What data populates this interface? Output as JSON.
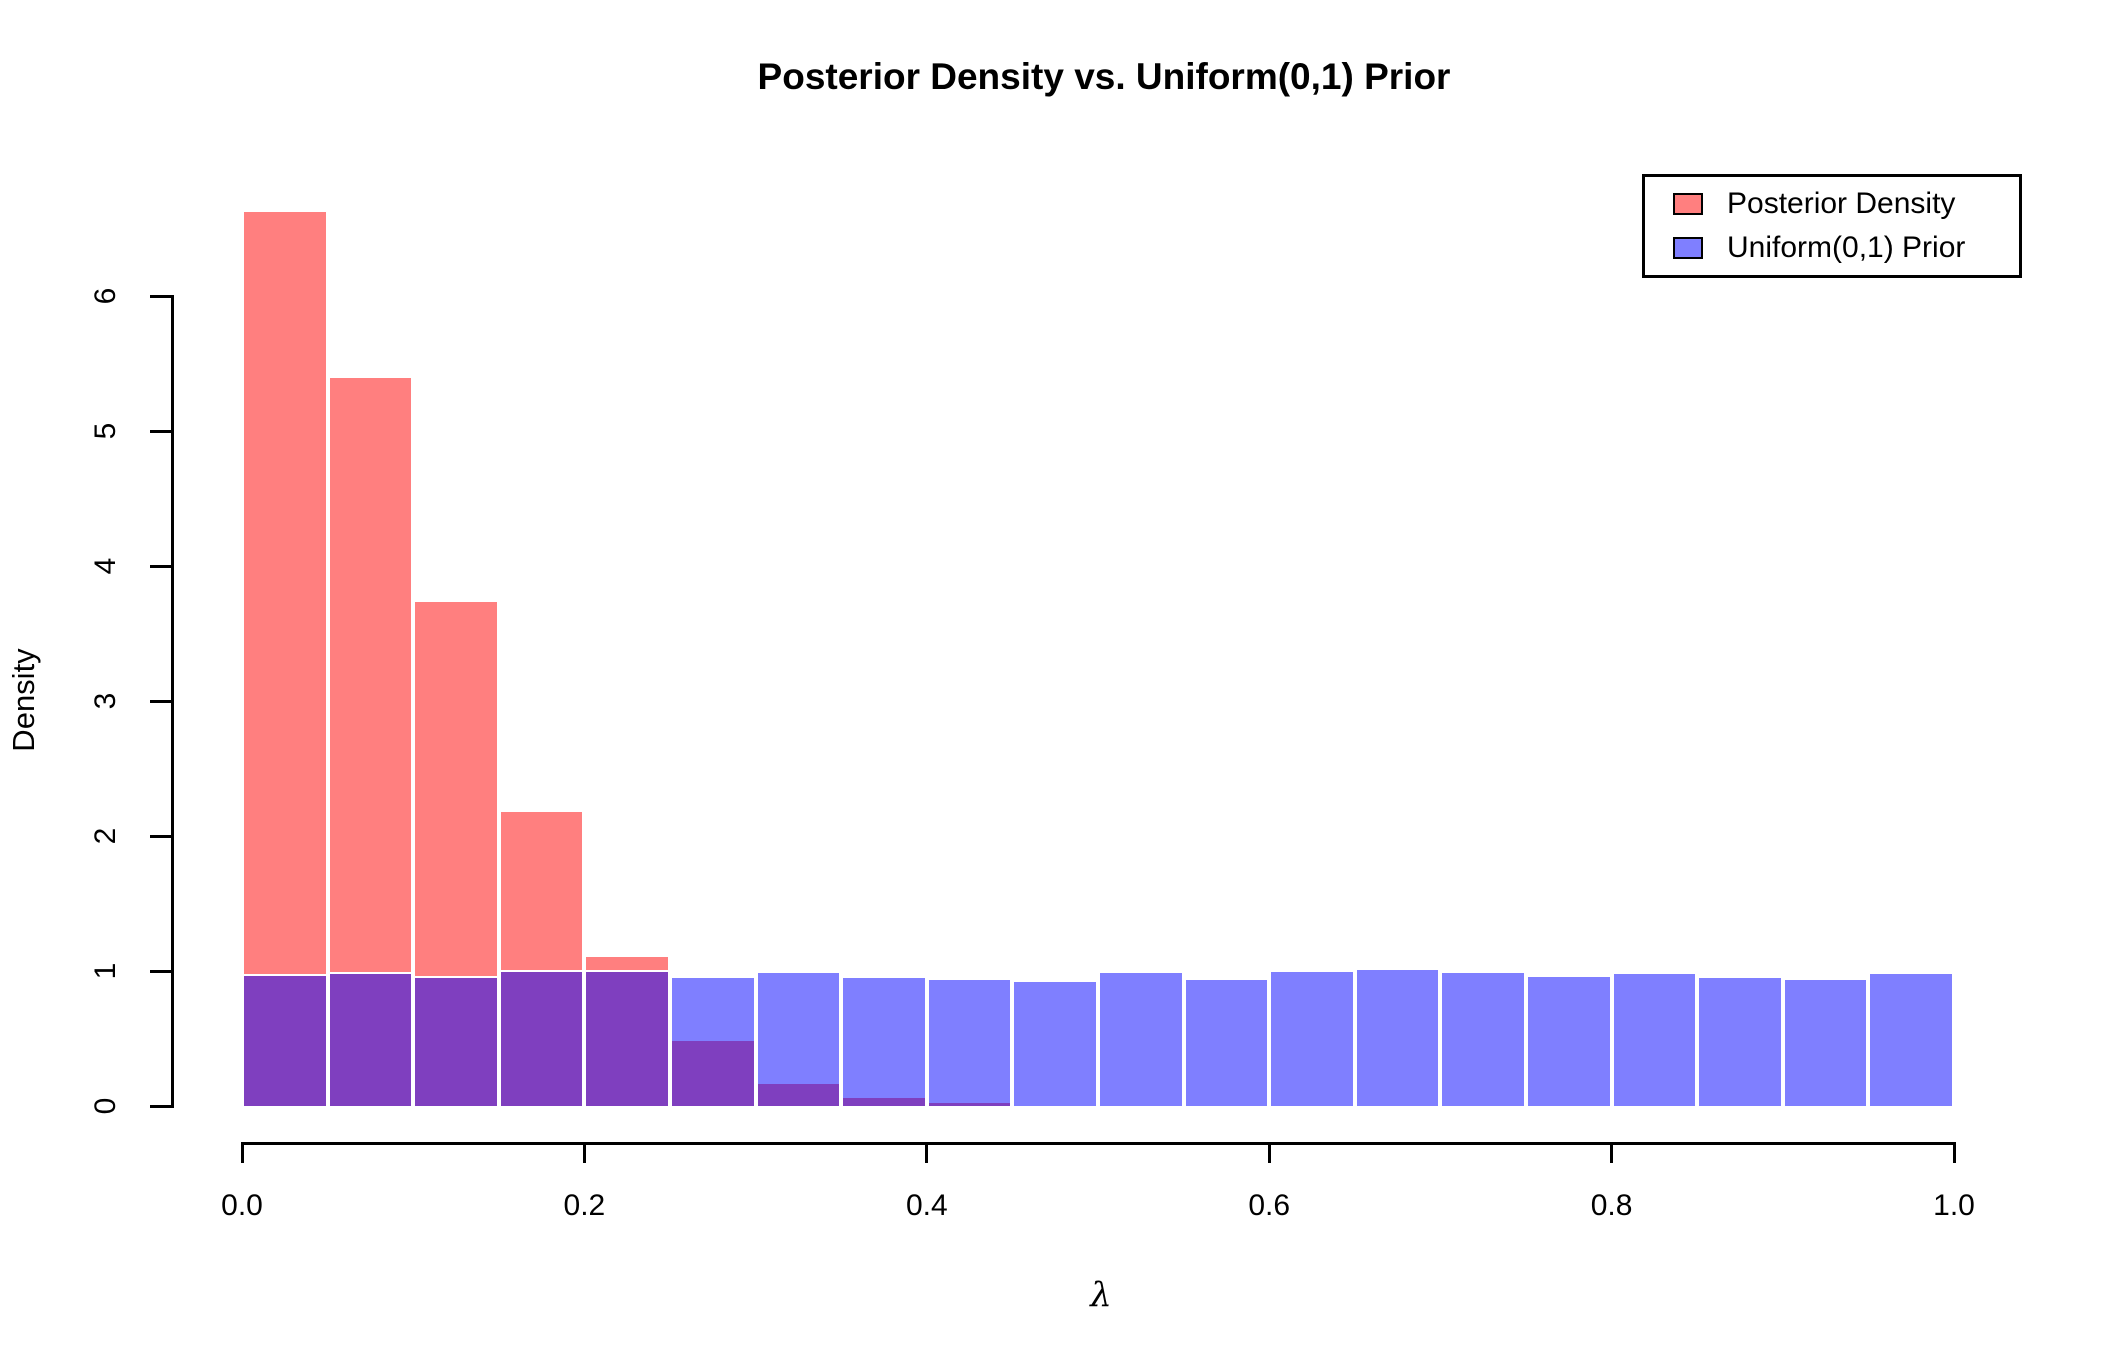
{
  "title": "Posterior Density vs. Uniform(0,1) Prior",
  "legend": {
    "position": "top-right",
    "items": [
      {
        "id": "posterior",
        "label": "Posterior Density"
      },
      {
        "id": "prior",
        "label": "Uniform(0,1) Prior"
      }
    ]
  },
  "colors": {
    "posterior_fill": "rgba(255,0,0,0.5)",
    "prior_fill": "rgba(0,0,255,0.5)",
    "posterior_solid": "#ff8080",
    "prior_solid": "#8080ff",
    "overlap_solid": "#7f40bf",
    "bar_border": "#ffffff",
    "axis": "#000000",
    "background": "#ffffff"
  },
  "chart_data": {
    "type": "bar",
    "subtype": "overlaid-histograms",
    "title": "Posterior Density vs. Uniform(0,1) Prior",
    "xlabel": "λ",
    "ylabel": "Density",
    "xlim": [
      0.0,
      1.0
    ],
    "ylim": [
      0,
      6.65
    ],
    "grid": false,
    "legend_position": "top-right",
    "x_tick_values": [
      0.0,
      0.2,
      0.4,
      0.6,
      0.8,
      1.0
    ],
    "x_tick_labels": [
      "0.0",
      "0.2",
      "0.4",
      "0.6",
      "0.8",
      "1.0"
    ],
    "y_tick_values": [
      0,
      1,
      2,
      3,
      4,
      5,
      6
    ],
    "y_tick_labels": [
      "0",
      "1",
      "2",
      "3",
      "4",
      "5",
      "6"
    ],
    "bin_width": 0.05,
    "bin_starts": [
      0.0,
      0.05,
      0.1,
      0.15,
      0.2,
      0.25,
      0.3,
      0.35,
      0.4,
      0.45,
      0.5,
      0.55,
      0.6,
      0.65,
      0.7,
      0.75,
      0.8,
      0.85,
      0.9,
      0.95
    ],
    "series": [
      {
        "name": "Posterior Density",
        "values": [
          6.64,
          5.41,
          3.75,
          2.19,
          1.12,
          0.5,
          0.18,
          0.06,
          0.02,
          0,
          0,
          0,
          0,
          0,
          0,
          0,
          0,
          0,
          0,
          0
        ]
      },
      {
        "name": "Uniform(0,1) Prior",
        "values": [
          0.98,
          0.99,
          0.96,
          1.01,
          1.01,
          0.96,
          1.0,
          0.96,
          0.95,
          0.93,
          1.0,
          0.95,
          1.01,
          1.02,
          1.0,
          0.97,
          0.99,
          0.96,
          0.95,
          0.99
        ]
      }
    ]
  }
}
